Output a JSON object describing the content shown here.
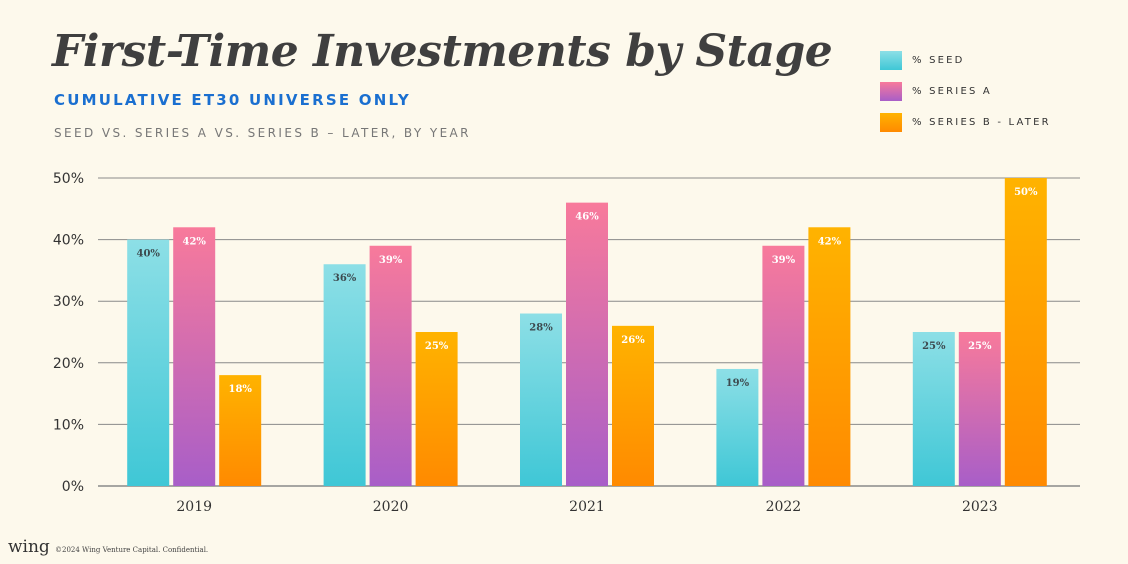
{
  "title": "First-Time Investments by Stage",
  "subtitle": "Cumulative ET30 Universe Only",
  "subtitle2": "Seed vs. Series A vs. Series B – Later, by Year",
  "legend": {
    "seed": "% Seed",
    "series_a": "% Series A",
    "series_b": "% Series B - Later"
  },
  "colors": {
    "seed_top": "#8ddfe6",
    "seed_bottom": "#3fc7d6",
    "a_top": "#f87a9b",
    "a_bottom": "#a85ec8",
    "b_top": "#ffb300",
    "b_bottom": "#ff8a00",
    "grid": "#8a8a8a"
  },
  "chart_data": {
    "type": "bar",
    "categories": [
      "2019",
      "2020",
      "2021",
      "2022",
      "2023"
    ],
    "series": [
      {
        "name": "% Seed",
        "values": [
          40,
          36,
          28,
          19,
          25
        ]
      },
      {
        "name": "% Series A",
        "values": [
          42,
          39,
          46,
          39,
          25
        ]
      },
      {
        "name": "% Series B - Later",
        "values": [
          18,
          25,
          26,
          42,
          50
        ]
      }
    ],
    "ylim": [
      0,
      50
    ],
    "yticks": [
      0,
      10,
      20,
      30,
      40,
      50
    ],
    "ytick_labels": [
      "0%",
      "10%",
      "20%",
      "30%",
      "40%",
      "50%"
    ],
    "grid": true,
    "legend_position": "top-right"
  },
  "footer": {
    "logo": "wing",
    "text": "©2024 Wing Venture Capital. Confidential."
  }
}
